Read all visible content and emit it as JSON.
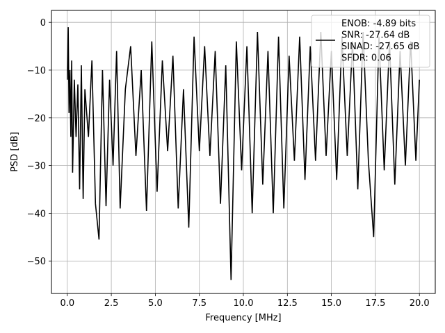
{
  "chart_data": {
    "type": "line",
    "title": "",
    "xlabel": "Frequency [MHz]",
    "ylabel": "PSD [dB]",
    "xlim": [
      -0.9,
      20.9
    ],
    "ylim": [
      -56.8,
      2.5
    ],
    "xticks": [
      0.0,
      2.5,
      5.0,
      7.5,
      10.0,
      12.5,
      15.0,
      17.5,
      20.0
    ],
    "xtick_labels": [
      "0.0",
      "2.5",
      "5.0",
      "7.5",
      "10.0",
      "12.5",
      "15.0",
      "17.5",
      "20.0"
    ],
    "yticks": [
      0,
      -10,
      -20,
      -30,
      -40,
      -50
    ],
    "ytick_labels": [
      "0",
      "−10",
      "−20",
      "−30",
      "−40",
      "−50"
    ],
    "grid": true,
    "legend_position": "top-right",
    "legend_lines": [
      "ENOB: -4.89 bits",
      "SNR: -27.64 dB",
      "SINAD: -27.65 dB",
      "SFDR: 0.06"
    ],
    "series": [
      {
        "color": "#000000",
        "x": [
          0.0,
          0.05,
          0.1,
          0.15,
          0.2,
          0.25,
          0.3,
          0.4,
          0.5,
          0.6,
          0.7,
          0.8,
          0.9,
          1.0,
          1.2,
          1.4,
          1.6,
          1.8,
          2.0,
          2.2,
          2.4,
          2.6,
          2.8,
          3.0,
          3.3,
          3.6,
          3.9,
          4.2,
          4.5,
          4.8,
          5.1,
          5.4,
          5.7,
          6.0,
          6.3,
          6.6,
          6.9,
          7.2,
          7.5,
          7.8,
          8.1,
          8.4,
          8.7,
          9.0,
          9.3,
          9.6,
          9.9,
          10.2,
          10.5,
          10.8,
          11.1,
          11.4,
          11.7,
          12.0,
          12.3,
          12.6,
          12.9,
          13.2,
          13.5,
          13.8,
          14.1,
          14.4,
          14.7,
          15.0,
          15.3,
          15.6,
          15.9,
          16.2,
          16.5,
          16.8,
          17.1,
          17.4,
          17.7,
          18.0,
          18.3,
          18.6,
          18.9,
          19.2,
          19.5,
          19.8,
          20.0
        ],
        "y": [
          -12,
          -1,
          -19,
          -10,
          -24,
          -8,
          -31.5,
          -12,
          -24,
          -13,
          -35,
          -9,
          -37,
          -14,
          -24,
          -8,
          -38,
          -45.5,
          -10,
          -38.5,
          -12,
          -30,
          -6,
          -39,
          -14,
          -5,
          -28,
          -10,
          -39.5,
          -4,
          -35.5,
          -8,
          -27,
          -7,
          -39,
          -14,
          -43,
          -3,
          -27,
          -5,
          -28,
          -6,
          -38,
          -9,
          -54,
          -4,
          -31,
          -5,
          -40,
          -2,
          -34,
          -6,
          -40,
          -3,
          -39,
          -7,
          -29,
          -3,
          -33,
          -5,
          -29,
          -2,
          -28,
          -6,
          -33,
          -3,
          -28,
          -4,
          -35,
          -2,
          -29,
          -45,
          -3,
          -31,
          -4,
          -34,
          -6,
          -30,
          -4,
          -29,
          -12
        ]
      }
    ]
  }
}
